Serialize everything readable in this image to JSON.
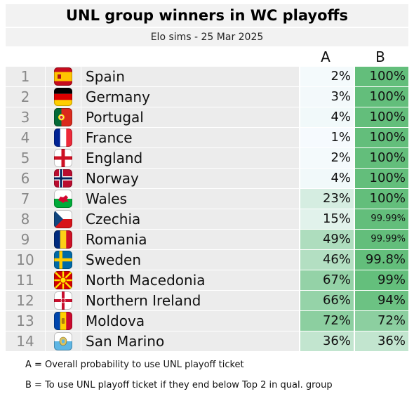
{
  "chart_data": {
    "type": "table",
    "title": "UNL group winners in WC playoffs",
    "subtitle": "Elo sims - 25 Mar 2025",
    "columns": [
      "A",
      "B"
    ],
    "rows": [
      {
        "rank": "1",
        "team": "Spain",
        "flag": "spain-flag-icon",
        "a": "2%",
        "a_value": 2,
        "b": "100%",
        "b_value": 100
      },
      {
        "rank": "2",
        "team": "Germany",
        "flag": "germany-flag-icon",
        "a": "3%",
        "a_value": 3,
        "b": "100%",
        "b_value": 100
      },
      {
        "rank": "3",
        "team": "Portugal",
        "flag": "portugal-flag-icon",
        "a": "4%",
        "a_value": 4,
        "b": "100%",
        "b_value": 100
      },
      {
        "rank": "4",
        "team": "France",
        "flag": "france-flag-icon",
        "a": "1%",
        "a_value": 1,
        "b": "100%",
        "b_value": 100
      },
      {
        "rank": "5",
        "team": "England",
        "flag": "england-flag-icon",
        "a": "2%",
        "a_value": 2,
        "b": "100%",
        "b_value": 100
      },
      {
        "rank": "6",
        "team": "Norway",
        "flag": "norway-flag-icon",
        "a": "4%",
        "a_value": 4,
        "b": "100%",
        "b_value": 100
      },
      {
        "rank": "7",
        "team": "Wales",
        "flag": "wales-flag-icon",
        "a": "23%",
        "a_value": 23,
        "b": "100%",
        "b_value": 100
      },
      {
        "rank": "8",
        "team": "Czechia",
        "flag": "czechia-flag-icon",
        "a": "15%",
        "a_value": 15,
        "b": "99.99%",
        "b_value": 99.99
      },
      {
        "rank": "9",
        "team": "Romania",
        "flag": "romania-flag-icon",
        "a": "49%",
        "a_value": 49,
        "b": "99.99%",
        "b_value": 99.99
      },
      {
        "rank": "10",
        "team": "Sweden",
        "flag": "sweden-flag-icon",
        "a": "46%",
        "a_value": 46,
        "b": "99.8%",
        "b_value": 99.8
      },
      {
        "rank": "11",
        "team": "North Macedonia",
        "flag": "north-macedonia-flag-icon",
        "a": "67%",
        "a_value": 67,
        "b": "99%",
        "b_value": 99
      },
      {
        "rank": "12",
        "team": "Northern Ireland",
        "flag": "northern-ireland-flag-icon",
        "a": "66%",
        "a_value": 66,
        "b": "94%",
        "b_value": 94
      },
      {
        "rank": "13",
        "team": "Moldova",
        "flag": "moldova-flag-icon",
        "a": "72%",
        "a_value": 72,
        "b": "72%",
        "b_value": 72
      },
      {
        "rank": "14",
        "team": "San Marino",
        "flag": "san-marino-flag-icon",
        "a": "36%",
        "a_value": 36,
        "b": "36%",
        "b_value": 36
      }
    ],
    "color_scale": {
      "low": "#f7fbff",
      "high": "#63be7b"
    },
    "notes": [
      "A =  Overall probability to use UNL playoff ticket",
      "B =  To use UNL playoff ticket if they end below Top 2 in qual. group"
    ]
  }
}
